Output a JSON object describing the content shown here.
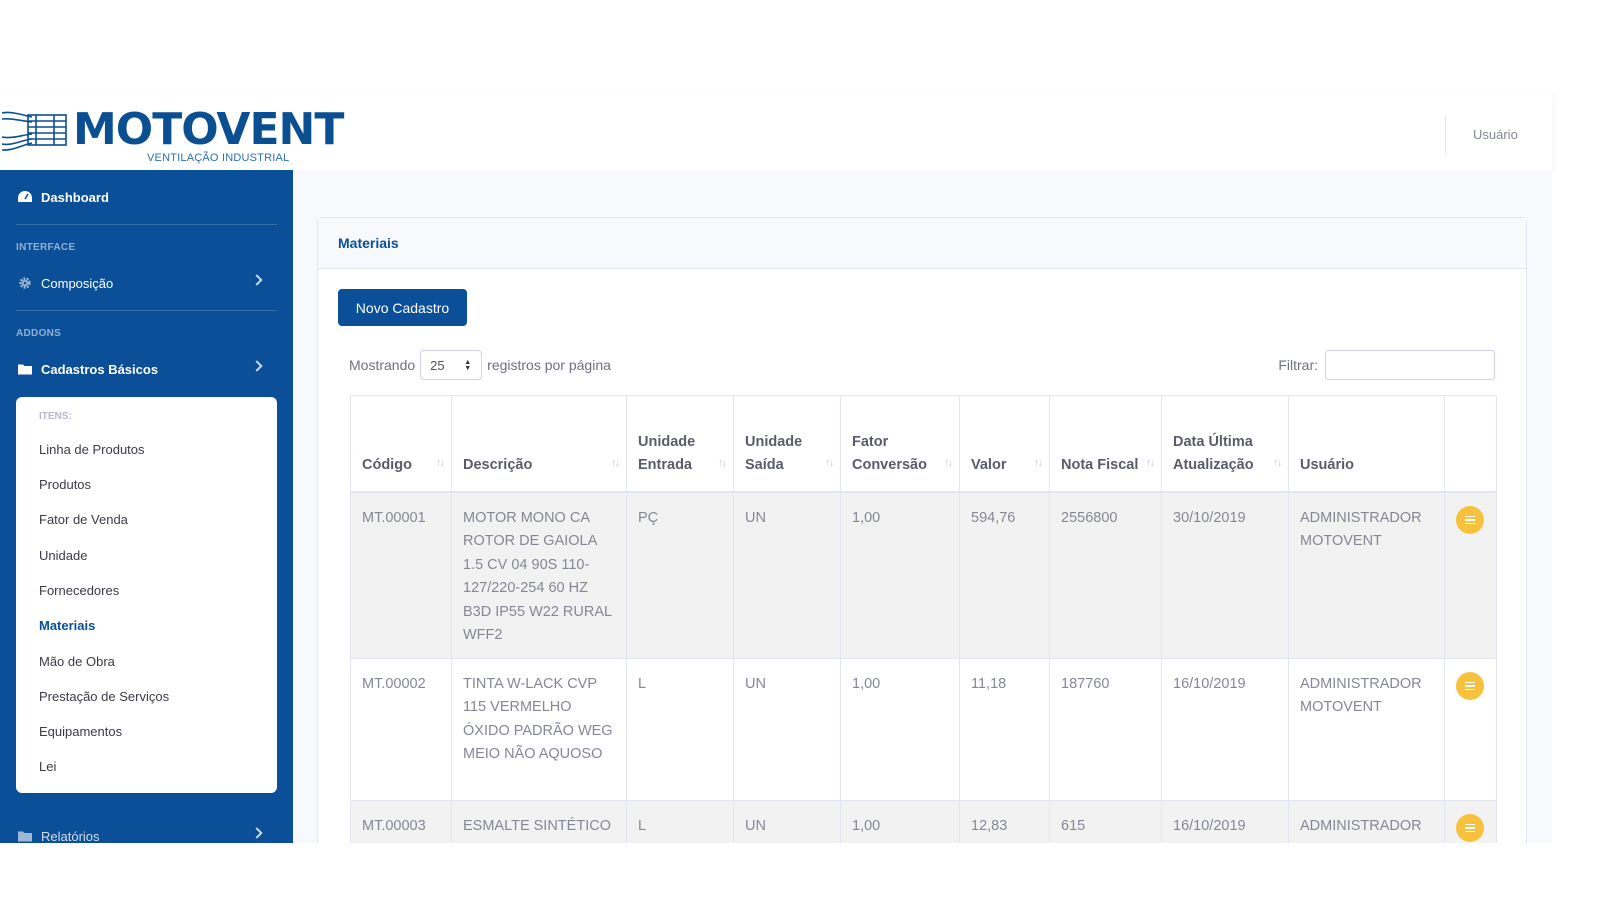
{
  "brand": {
    "name": "MOTOVENT",
    "tagline": "VENTILAÇÃO INDUSTRIAL"
  },
  "topbar": {
    "user_label": "Usuário"
  },
  "sidebar": {
    "dashboard": "Dashboard",
    "heading_interface": "INTERFACE",
    "composicao": "Composição",
    "heading_addons": "ADDONS",
    "cadastros": "Cadastros Básicos",
    "submenu_heading": "ITENS:",
    "submenu": [
      "Linha de Produtos",
      "Produtos",
      "Fator de Venda",
      "Unidade",
      "Fornecedores",
      "Materiais",
      "Mão de Obra",
      "Prestação de Serviços",
      "Equipamentos",
      "Lei"
    ],
    "active_item": "Materiais",
    "relatorios": "Relatórios"
  },
  "card": {
    "title": "Materiais",
    "new_button": "Novo Cadastro",
    "length_prefix": "Mostrando",
    "length_value": "25",
    "length_suffix": "registros por página",
    "filter_label": "Filtrar:"
  },
  "table": {
    "columns": [
      "Código",
      "Descrição",
      "Unidade Entrada",
      "Unidade Saída",
      "Fator Conversão",
      "Valor",
      "Nota Fiscal",
      "Data Última Atualização",
      "Usuário"
    ],
    "rows": [
      {
        "codigo": "MT.00001",
        "descricao": "MOTOR MONO CA ROTOR DE GAIOLA 1.5 CV 04 90S 110-127/220-254 60 HZ B3D IP55 W22 RURAL WFF2",
        "entrada": "PÇ",
        "saida": "UN",
        "fator": "1,00",
        "valor": "594,76",
        "nota": "2556800",
        "data": "30/10/2019",
        "usuario": "ADMINISTRADOR MOTOVENT"
      },
      {
        "codigo": "MT.00002",
        "descricao": "TINTA W-LACK CVP 115 VERMELHO ÓXIDO PADRÃO WEG MEIO NÃO AQUOSO",
        "entrada": "L",
        "saida": "UN",
        "fator": "1,00",
        "valor": "11,18",
        "nota": "187760",
        "data": "16/10/2019",
        "usuario": "ADMINISTRADOR MOTOVENT"
      },
      {
        "codigo": "MT.00003",
        "descricao": "ESMALTE SINTÉTICO CINZA",
        "entrada": "L",
        "saida": "UN",
        "fator": "1,00",
        "valor": "12,83",
        "nota": "615",
        "data": "16/10/2019",
        "usuario": "ADMINISTRADOR MOTOVENT"
      }
    ]
  }
}
